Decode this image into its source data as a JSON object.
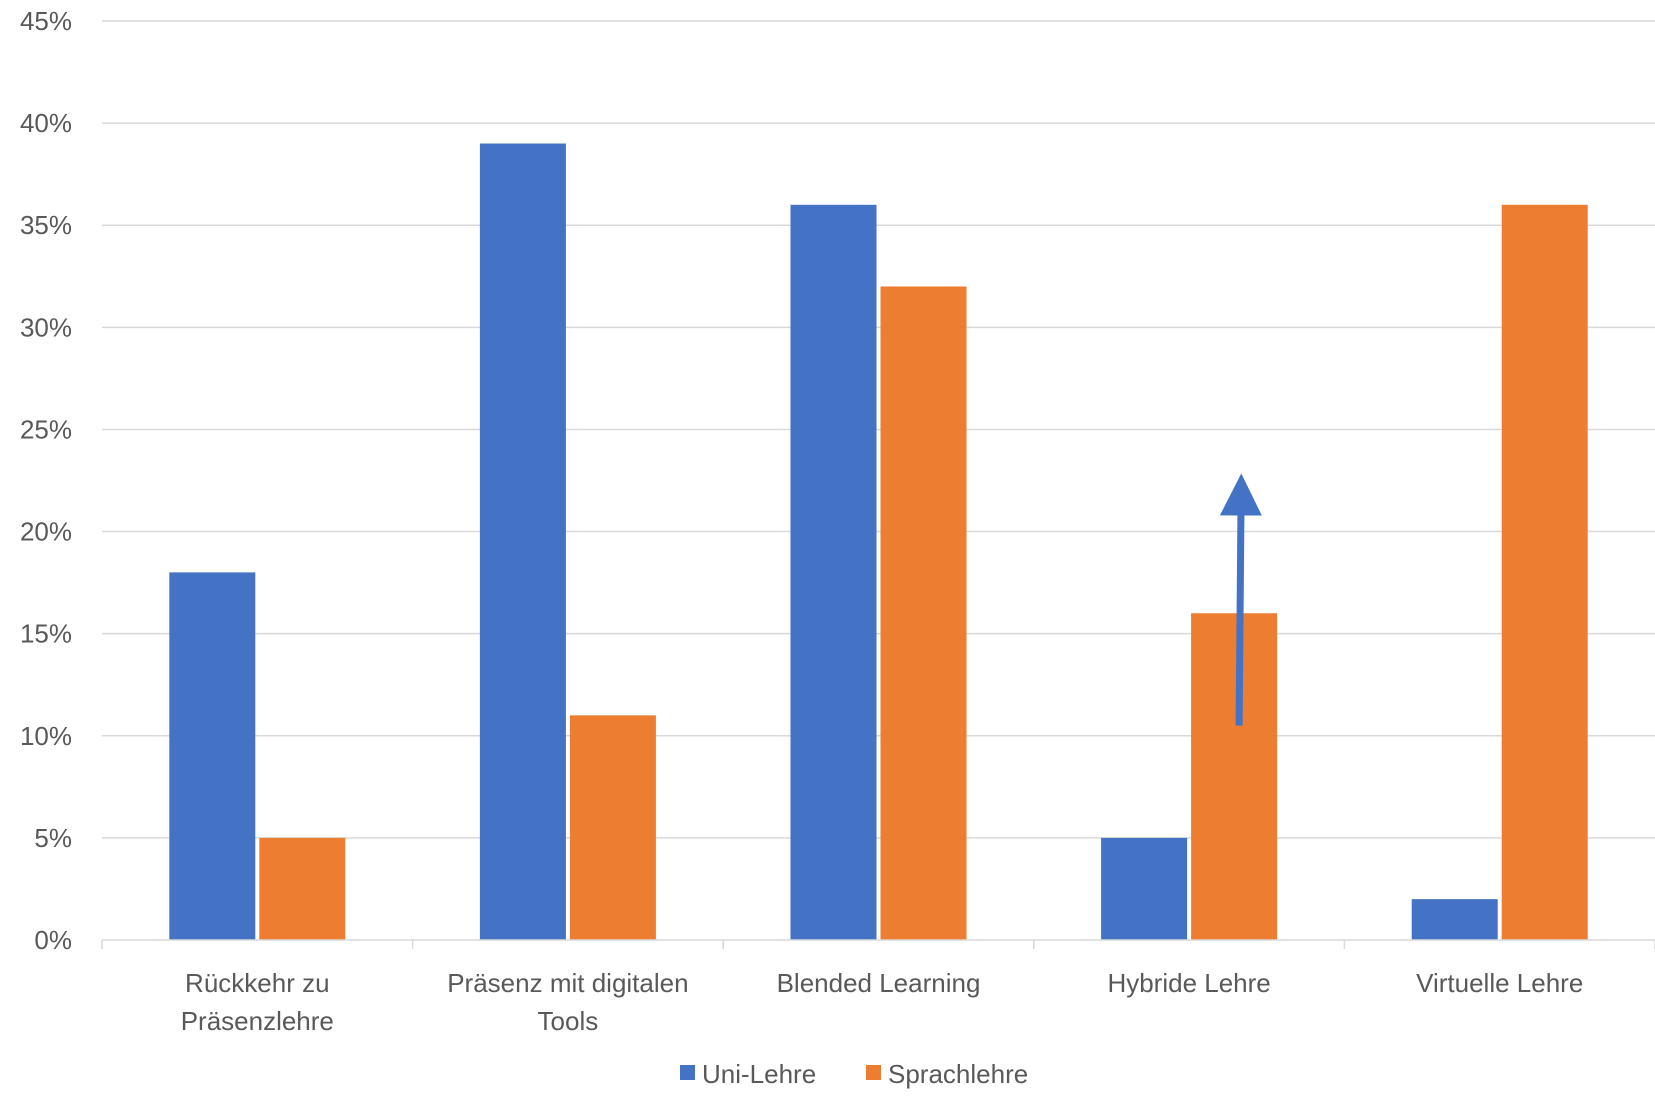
{
  "chart_data": {
    "type": "bar",
    "title": "",
    "xlabel": "",
    "ylabel": "",
    "categories": [
      [
        "Rückkehr zu",
        "Präsenzlehre"
      ],
      [
        "Präsenz mit digitalen",
        "Tools"
      ],
      [
        "Blended Learning"
      ],
      [
        "Hybride Lehre"
      ],
      [
        "Virtuelle Lehre"
      ]
    ],
    "series": [
      {
        "name": "Uni-Lehre",
        "color": "#4472C4",
        "values": [
          18,
          39,
          36,
          5,
          2
        ]
      },
      {
        "name": "Sprachlehre",
        "color": "#ED7D31",
        "values": [
          5,
          11,
          32,
          16,
          36
        ]
      }
    ],
    "ylim": [
      0,
      45
    ],
    "yticks": [
      0,
      5,
      10,
      15,
      20,
      25,
      30,
      35,
      40,
      45
    ],
    "ytick_labels": [
      "0%",
      "5%",
      "10%",
      "15%",
      "20%",
      "25%",
      "30%",
      "35%",
      "40%",
      "45%"
    ],
    "grid": true,
    "legend_position": "bottom",
    "annotation": {
      "type": "arrow",
      "color": "#4472C4",
      "category_index": 3,
      "from_value": 10.5,
      "to_value": 22.5
    }
  }
}
